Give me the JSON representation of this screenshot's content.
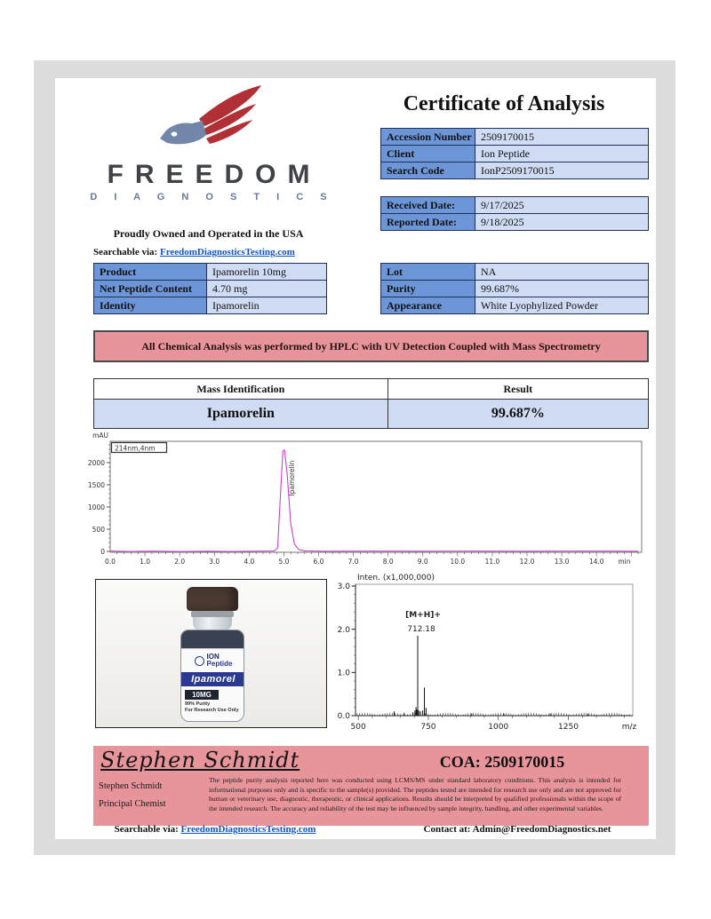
{
  "title": "Certificate of Analysis",
  "logo": {
    "name": "FREEDOM",
    "subtitle": "D I A G N O S T I C S",
    "tagline": "Proudly Owned and Operated in the USA"
  },
  "links": {
    "searchable_label": "Searchable via:",
    "searchable_url": "FreedomDiagnosticsTesting.com",
    "contact_label": "Contact at:",
    "contact_value": "Admin@FreedomDiagnostics.net"
  },
  "tables": {
    "accession": [
      {
        "label": "Accession Number",
        "value": "2509170015"
      },
      {
        "label": "Client",
        "value": "Ion Peptide"
      },
      {
        "label": "Search Code",
        "value": "IonP2509170015"
      }
    ],
    "dates": [
      {
        "label": "Received Date:",
        "value": "9/17/2025"
      },
      {
        "label": "Reported Date:",
        "value": "9/18/2025"
      }
    ],
    "product": [
      {
        "label": "Product",
        "value": "Ipamorelin 10mg"
      },
      {
        "label": "Net Peptide Content",
        "value": "4.70 mg"
      },
      {
        "label": "Identity",
        "value": "Ipamorelin"
      }
    ],
    "lot": [
      {
        "label": "Lot",
        "value": "NA"
      },
      {
        "label": "Purity",
        "value": "99.687%"
      },
      {
        "label": "Appearance",
        "value": "White Lyophylized Powder"
      }
    ]
  },
  "banner": "All Chemical Analysis was performed by HPLC with UV Detection Coupled with Mass Spectrometry",
  "mass_table": {
    "headers": [
      "Mass Identification",
      "Result"
    ],
    "row": [
      "Ipamorelin",
      "99.687%"
    ]
  },
  "vial": {
    "brand_top": "ION",
    "brand_bottom": "Peptide",
    "name": "Ipamorel",
    "strength": "10MG",
    "line1": "99% Purity",
    "line2": "For Research Use Only"
  },
  "signature": {
    "script": "Stephen Schmidt",
    "coa": "COA: 2509170015",
    "name": "Stephen Schmidt",
    "role": "Principal Chemist",
    "disclaimer": "The peptide purity analysis reported here was conducted using LCMS/MS under standard laboratory conditions. This analysis is intended for informational purposes only and is specific to the sample(s) provided. The peptides tested are intended for research use only and are not approved for human or veterinary use, diagnostic, therapeutic, or clinical applications. Results should be interpreted by qualified professionals within the scope of the intended research. The accuracy and reliability of the test may be influenced by sample integrity, handling, and other experimental variables."
  },
  "colors": {
    "table_label_bg": "#6d96d8",
    "table_value_bg": "#cfdcf4",
    "salmon": "#e8949b",
    "hplc_trace": "#cc3fcc",
    "link_blue": "#1155cc",
    "ms_value_blue": "#4a44b5",
    "frame_gray": "#dcdcdc"
  },
  "chart_data": [
    {
      "type": "line",
      "name": "hplc-chromatogram",
      "ylabel": "mAU",
      "xlabel": "min",
      "legend": "214nm,4nm",
      "xlim": [
        0,
        15.3
      ],
      "ylim": [
        0,
        2480
      ],
      "yticks": [
        0,
        500,
        1000,
        1500,
        2000
      ],
      "xticks": [
        0,
        1,
        2,
        3,
        4,
        5,
        6,
        7,
        8,
        9,
        10,
        11,
        12,
        13,
        14
      ],
      "line_color": "#cc3fcc",
      "peak_label": "Ipamorelin",
      "peak_rt": 5.0,
      "peak_height": 2280,
      "points": [
        [
          0,
          8
        ],
        [
          0.6,
          -4
        ],
        [
          1.2,
          6
        ],
        [
          2.0,
          -3
        ],
        [
          2.8,
          5
        ],
        [
          3.6,
          -2
        ],
        [
          4.4,
          6
        ],
        [
          4.72,
          8
        ],
        [
          4.82,
          80
        ],
        [
          4.9,
          1250
        ],
        [
          4.97,
          2260
        ],
        [
          5.02,
          2280
        ],
        [
          5.1,
          1700
        ],
        [
          5.2,
          620
        ],
        [
          5.3,
          170
        ],
        [
          5.42,
          45
        ],
        [
          5.58,
          12
        ],
        [
          6.2,
          5
        ],
        [
          7.5,
          7
        ],
        [
          9.0,
          4
        ],
        [
          10.5,
          7
        ],
        [
          12.0,
          4
        ],
        [
          13.5,
          6
        ],
        [
          15.2,
          5
        ]
      ]
    },
    {
      "type": "stick",
      "name": "mass-spectrum",
      "title": "Inten. (x1,000,000)",
      "xlabel": "m/z",
      "xlim": [
        490,
        1480
      ],
      "ylim": [
        0,
        3.0
      ],
      "yticks": [
        0,
        1,
        2,
        3
      ],
      "xticks": [
        500,
        750,
        1000,
        1250
      ],
      "annotation_label": "[M+H]+",
      "annotation_value": "712.18",
      "annotation_color": "#4a44b5",
      "peaks": [
        [
          628,
          0.1
        ],
        [
          664,
          0.07
        ],
        [
          695,
          0.08
        ],
        [
          702,
          0.12
        ],
        [
          706,
          0.2
        ],
        [
          709,
          0.14
        ],
        [
          712.18,
          1.85
        ],
        [
          716,
          0.12
        ],
        [
          722,
          0.1
        ],
        [
          730,
          0.12
        ],
        [
          736,
          0.65
        ],
        [
          742,
          0.18
        ],
        [
          905,
          0.05
        ],
        [
          1020,
          0.04
        ],
        [
          1185,
          0.05
        ],
        [
          1320,
          0.04
        ]
      ]
    }
  ]
}
